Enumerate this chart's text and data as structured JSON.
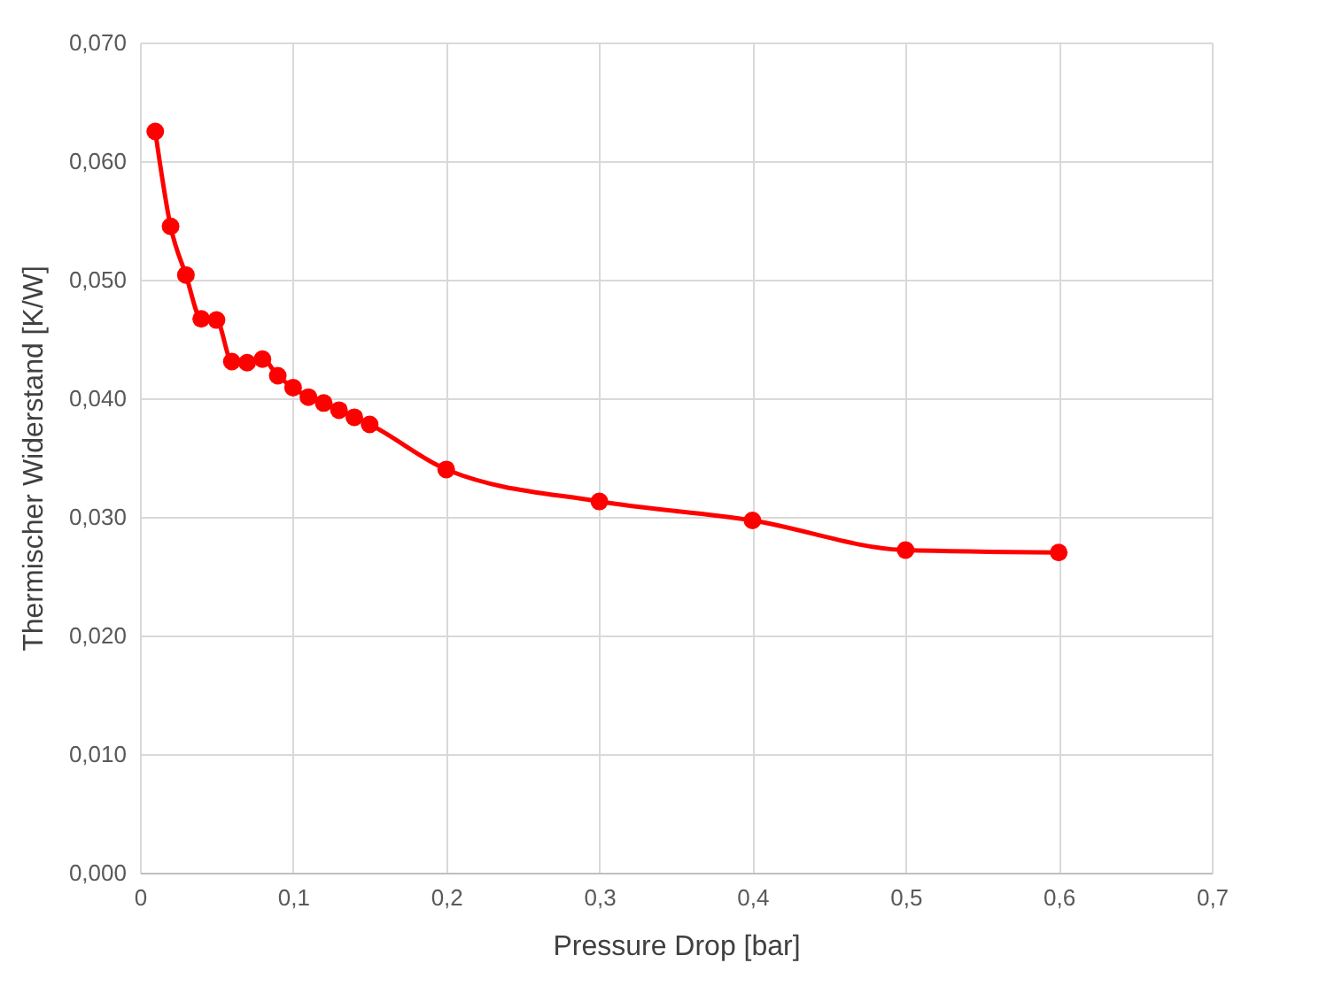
{
  "chart_data": {
    "type": "line",
    "xlabel": "Pressure Drop [bar]",
    "ylabel": "Thermischer Widerstand [K/W]",
    "x": [
      0.01,
      0.02,
      0.03,
      0.04,
      0.05,
      0.06,
      0.07,
      0.08,
      0.09,
      0.1,
      0.11,
      0.12,
      0.13,
      0.14,
      0.15,
      0.2,
      0.3,
      0.4,
      0.5,
      0.6
    ],
    "series": [
      {
        "color": "#ff0000",
        "values": [
          0.0625,
          0.0545,
          0.0504,
          0.0467,
          0.0466,
          0.0431,
          0.043,
          0.0433,
          0.0419,
          0.0409,
          0.0401,
          0.0396,
          0.039,
          0.0384,
          0.0378,
          0.034,
          0.0313,
          0.0297,
          0.0272,
          0.027
        ]
      }
    ],
    "xlim": [
      0,
      0.7
    ],
    "xticks": [
      {
        "value": 0,
        "label": "0"
      },
      {
        "value": 0.1,
        "label": "0,1"
      },
      {
        "value": 0.2,
        "label": "0,2"
      },
      {
        "value": 0.3,
        "label": "0,3"
      },
      {
        "value": 0.4,
        "label": "0,4"
      },
      {
        "value": 0.5,
        "label": "0,5"
      },
      {
        "value": 0.6,
        "label": "0,6"
      },
      {
        "value": 0.7,
        "label": "0,7"
      }
    ],
    "ylim": [
      0,
      0.07
    ],
    "yticks": [
      {
        "value": 0,
        "label": "0,000"
      },
      {
        "value": 0.01,
        "label": "0,010"
      },
      {
        "value": 0.02,
        "label": "0,020"
      },
      {
        "value": 0.03,
        "label": "0,030"
      },
      {
        "value": 0.04,
        "label": "0,040"
      },
      {
        "value": 0.05,
        "label": "0,050"
      },
      {
        "value": 0.06,
        "label": "0,060"
      },
      {
        "value": 0.07,
        "label": "0,070"
      }
    ],
    "grid": true,
    "marker": "circle",
    "line_style": "solid"
  }
}
